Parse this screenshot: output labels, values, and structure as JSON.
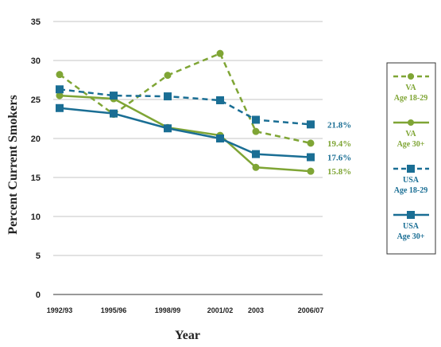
{
  "chart_data": {
    "type": "line",
    "title": "",
    "xlabel": "Year",
    "ylabel": "Percent Current Smokers",
    "ylim": [
      0,
      35
    ],
    "yticks": [
      0,
      5,
      10,
      15,
      20,
      25,
      30,
      35
    ],
    "grid": true,
    "legend_position": "right",
    "categories": [
      "1992/93",
      "1995/96",
      "1998/99",
      "2001/02",
      "2003",
      "2006/07"
    ],
    "series": [
      {
        "name": "VA Age 18-29",
        "name_lines": [
          "VA",
          "Age 18-29"
        ],
        "color": "#7fa535",
        "dashed": true,
        "marker": "circle",
        "values": [
          28.2,
          23.1,
          28.1,
          30.9,
          20.9,
          19.4
        ],
        "end_label": "19.4%"
      },
      {
        "name": "VA Age 30+",
        "name_lines": [
          "VA",
          "Age 30+"
        ],
        "color": "#7fa535",
        "dashed": false,
        "marker": "circle",
        "values": [
          25.5,
          25.1,
          21.4,
          20.4,
          16.3,
          15.8
        ],
        "end_label": "15.8%"
      },
      {
        "name": "USA Age 18-29",
        "name_lines": [
          "USA",
          "Age 18-29"
        ],
        "color": "#1a6e94",
        "dashed": true,
        "marker": "square",
        "values": [
          26.3,
          25.5,
          25.4,
          24.9,
          22.4,
          21.8
        ],
        "end_label": "21.8%"
      },
      {
        "name": "USA Age 30+",
        "name_lines": [
          "USA",
          "Age 30+"
        ],
        "color": "#1a6e94",
        "dashed": false,
        "marker": "square",
        "values": [
          23.9,
          23.2,
          21.3,
          20.0,
          18.0,
          17.6
        ],
        "end_label": "17.6%"
      }
    ]
  }
}
